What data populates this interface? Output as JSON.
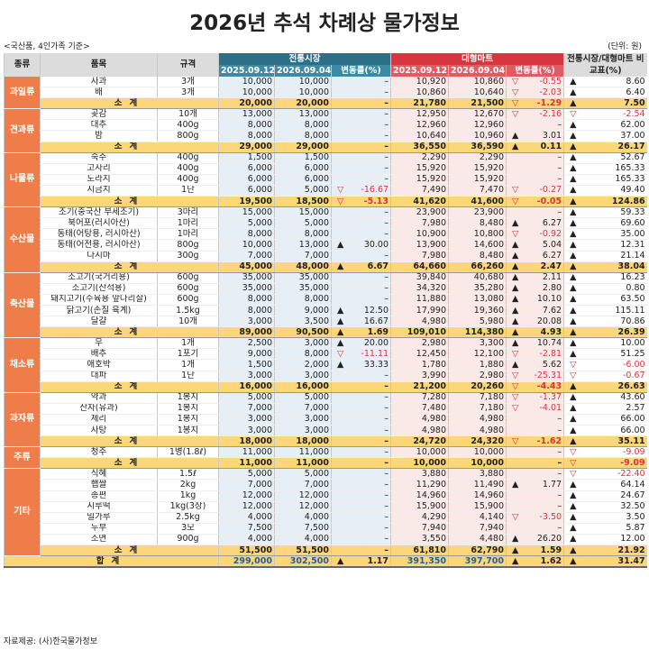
{
  "title": "2026년 추석 차례상 물가정보",
  "subnote": "<국산품, 4인가족 기준>",
  "unit": "(단위: 원)",
  "source": "자료제공: (사)한국물가정보",
  "headers": {
    "category": "종류",
    "item": "품목",
    "spec": "규격",
    "traditional": "전통시장",
    "mart": "대형마트",
    "date1": "2025.09.12.",
    "date2": "2026.09.04.",
    "change": "변동률(%)",
    "compare": "전통시장/대형마트 비교표(%)"
  },
  "subtotal_label": "소계",
  "total_label": "합계",
  "categories": [
    {
      "name": "과일류",
      "items": [
        {
          "name": "사과",
          "spec": "3개",
          "t1": "10,000",
          "t2": "10,000",
          "tm": "",
          "tc": "–",
          "m1": "10,920",
          "m2": "10,860",
          "mm": "▽",
          "mc": "-0.55",
          "cm": "▲",
          "cv": "8.60"
        },
        {
          "name": "배",
          "spec": "3개",
          "t1": "10,000",
          "t2": "10,000",
          "tm": "",
          "tc": "–",
          "m1": "10,860",
          "m2": "10,640",
          "mm": "▽",
          "mc": "-2.03",
          "cm": "▲",
          "cv": "6.40"
        }
      ],
      "sub": {
        "t1": "20,000",
        "t2": "20,000",
        "tm": "",
        "tc": "–",
        "m1": "21,780",
        "m2": "21,500",
        "mm": "▽",
        "mc": "-1.29",
        "cm": "▲",
        "cv": "7.50"
      }
    },
    {
      "name": "견과류",
      "items": [
        {
          "name": "곶감",
          "spec": "10개",
          "t1": "13,000",
          "t2": "13,000",
          "tm": "",
          "tc": "–",
          "m1": "12,950",
          "m2": "12,670",
          "mm": "▽",
          "mc": "-2.16",
          "cm": "▽",
          "cv": "-2.54"
        },
        {
          "name": "대추",
          "spec": "400g",
          "t1": "8,000",
          "t2": "8,000",
          "tm": "",
          "tc": "–",
          "m1": "12,960",
          "m2": "12,960",
          "mm": "",
          "mc": "–",
          "cm": "▲",
          "cv": "62.00"
        },
        {
          "name": "밤",
          "spec": "800g",
          "t1": "8,000",
          "t2": "8,000",
          "tm": "",
          "tc": "–",
          "m1": "10,640",
          "m2": "10,960",
          "mm": "▲",
          "mc": "3.01",
          "cm": "▲",
          "cv": "37.00"
        }
      ],
      "sub": {
        "t1": "29,000",
        "t2": "29,000",
        "tm": "",
        "tc": "–",
        "m1": "36,550",
        "m2": "36,590",
        "mm": "▲",
        "mc": "0.11",
        "cm": "▲",
        "cv": "26.17"
      }
    },
    {
      "name": "나물류",
      "items": [
        {
          "name": "숙주",
          "spec": "400g",
          "t1": "1,500",
          "t2": "1,500",
          "tm": "",
          "tc": "–",
          "m1": "2,290",
          "m2": "2,290",
          "mm": "",
          "mc": "–",
          "cm": "▲",
          "cv": "52.67"
        },
        {
          "name": "고사리",
          "spec": "400g",
          "t1": "6,000",
          "t2": "6,000",
          "tm": "",
          "tc": "–",
          "m1": "15,920",
          "m2": "15,920",
          "mm": "",
          "mc": "–",
          "cm": "▲",
          "cv": "165.33"
        },
        {
          "name": "도라지",
          "spec": "400g",
          "t1": "6,000",
          "t2": "6,000",
          "tm": "",
          "tc": "–",
          "m1": "15,920",
          "m2": "15,920",
          "mm": "",
          "mc": "–",
          "cm": "▲",
          "cv": "165.33"
        },
        {
          "name": "시금치",
          "spec": "1단",
          "t1": "6,000",
          "t2": "5,000",
          "tm": "▽",
          "tc": "-16.67",
          "m1": "7,490",
          "m2": "7,470",
          "mm": "▽",
          "mc": "-0.27",
          "cm": "▲",
          "cv": "49.40"
        }
      ],
      "sub": {
        "t1": "19,500",
        "t2": "18,500",
        "tm": "▽",
        "tc": "-5.13",
        "m1": "41,620",
        "m2": "41,600",
        "mm": "▽",
        "mc": "-0.05",
        "cm": "▲",
        "cv": "124.86"
      }
    },
    {
      "name": "수산물",
      "items": [
        {
          "name": "조기(중국산 부세조기)",
          "spec": "3마리",
          "t1": "15,000",
          "t2": "15,000",
          "tm": "",
          "tc": "–",
          "m1": "23,900",
          "m2": "23,900",
          "mm": "",
          "mc": "–",
          "cm": "▲",
          "cv": "59.33"
        },
        {
          "name": "북어포(러시아산)",
          "spec": "1마리",
          "t1": "5,000",
          "t2": "5,000",
          "tm": "",
          "tc": "–",
          "m1": "7,980",
          "m2": "8,480",
          "mm": "▲",
          "mc": "6.27",
          "cm": "▲",
          "cv": "69.60"
        },
        {
          "name": "동태(어탕용, 러시아산)",
          "spec": "1마리",
          "t1": "8,000",
          "t2": "8,000",
          "tm": "",
          "tc": "–",
          "m1": "10,900",
          "m2": "10,800",
          "mm": "▽",
          "mc": "-0.92",
          "cm": "▲",
          "cv": "35.00"
        },
        {
          "name": "동태(어전용, 러시아산)",
          "spec": "800g",
          "t1": "10,000",
          "t2": "13,000",
          "tm": "▲",
          "tc": "30.00",
          "m1": "13,900",
          "m2": "14,600",
          "mm": "▲",
          "mc": "5.04",
          "cm": "▲",
          "cv": "12.31"
        },
        {
          "name": "다시마",
          "spec": "300g",
          "t1": "7,000",
          "t2": "7,000",
          "tm": "",
          "tc": "–",
          "m1": "7,980",
          "m2": "8,480",
          "mm": "▲",
          "mc": "6.27",
          "cm": "▲",
          "cv": "21.14"
        }
      ],
      "sub": {
        "t1": "45,000",
        "t2": "48,000",
        "tm": "▲",
        "tc": "6.67",
        "m1": "64,660",
        "m2": "66,260",
        "mm": "▲",
        "mc": "2.47",
        "cm": "▲",
        "cv": "38.04"
      }
    },
    {
      "name": "축산물",
      "items": [
        {
          "name": "소고기(국거리용)",
          "spec": "600g",
          "t1": "35,000",
          "t2": "35,000",
          "tm": "",
          "tc": "–",
          "m1": "39,840",
          "m2": "40,680",
          "mm": "▲",
          "mc": "2.11",
          "cm": "▲",
          "cv": "16.23"
        },
        {
          "name": "소고기(산적용)",
          "spec": "600g",
          "t1": "35,000",
          "t2": "35,000",
          "tm": "",
          "tc": "–",
          "m1": "34,320",
          "m2": "35,280",
          "mm": "▲",
          "mc": "2.80",
          "cm": "▲",
          "cv": "0.80"
        },
        {
          "name": "돼지고기(수육용 앞다리살)",
          "spec": "600g",
          "t1": "8,000",
          "t2": "8,000",
          "tm": "",
          "tc": "–",
          "m1": "11,880",
          "m2": "13,080",
          "mm": "▲",
          "mc": "10.10",
          "cm": "▲",
          "cv": "63.50"
        },
        {
          "name": "닭고기(손질 육계)",
          "spec": "1.5kg",
          "t1": "8,000",
          "t2": "9,000",
          "tm": "▲",
          "tc": "12.50",
          "m1": "17,990",
          "m2": "19,360",
          "mm": "▲",
          "mc": "7.62",
          "cm": "▲",
          "cv": "115.11"
        },
        {
          "name": "달걀",
          "spec": "10개",
          "t1": "3,000",
          "t2": "3,500",
          "tm": "▲",
          "tc": "16.67",
          "m1": "4,980",
          "m2": "5,980",
          "mm": "▲",
          "mc": "20.08",
          "cm": "▲",
          "cv": "70.86"
        }
      ],
      "sub": {
        "t1": "89,000",
        "t2": "90,500",
        "tm": "▲",
        "tc": "1.69",
        "m1": "109,010",
        "m2": "114,380",
        "mm": "▲",
        "mc": "4.93",
        "cm": "▲",
        "cv": "26.39"
      }
    },
    {
      "name": "채소류",
      "items": [
        {
          "name": "무",
          "spec": "1개",
          "t1": "2,500",
          "t2": "3,000",
          "tm": "▲",
          "tc": "20.00",
          "m1": "2,980",
          "m2": "3,300",
          "mm": "▲",
          "mc": "10.74",
          "cm": "▲",
          "cv": "10.00"
        },
        {
          "name": "배추",
          "spec": "1포기",
          "t1": "9,000",
          "t2": "8,000",
          "tm": "▽",
          "tc": "-11.11",
          "m1": "12,450",
          "m2": "12,100",
          "mm": "▽",
          "mc": "-2.81",
          "cm": "▲",
          "cv": "51.25"
        },
        {
          "name": "애호박",
          "spec": "1개",
          "t1": "1,500",
          "t2": "2,000",
          "tm": "▲",
          "tc": "33.33",
          "m1": "1,780",
          "m2": "1,880",
          "mm": "▲",
          "mc": "5.62",
          "cm": "▽",
          "cv": "-6.00"
        },
        {
          "name": "대파",
          "spec": "1단",
          "t1": "3,000",
          "t2": "3,000",
          "tm": "",
          "tc": "–",
          "m1": "3,990",
          "m2": "2,980",
          "mm": "▽",
          "mc": "-25.31",
          "cm": "▽",
          "cv": "-0.67"
        }
      ],
      "sub": {
        "t1": "16,000",
        "t2": "16,000",
        "tm": "",
        "tc": "–",
        "m1": "21,200",
        "m2": "20,260",
        "mm": "▽",
        "mc": "-4.43",
        "cm": "▲",
        "cv": "26.63"
      }
    },
    {
      "name": "과자류",
      "items": [
        {
          "name": "약과",
          "spec": "1봉지",
          "t1": "5,000",
          "t2": "5,000",
          "tm": "",
          "tc": "–",
          "m1": "7,280",
          "m2": "7,180",
          "mm": "▽",
          "mc": "-1.37",
          "cm": "▲",
          "cv": "43.60"
        },
        {
          "name": "산자(유과)",
          "spec": "1봉지",
          "t1": "7,000",
          "t2": "7,000",
          "tm": "",
          "tc": "–",
          "m1": "7,480",
          "m2": "7,180",
          "mm": "▽",
          "mc": "-4.01",
          "cm": "▲",
          "cv": "2.57"
        },
        {
          "name": "제리",
          "spec": "1봉지",
          "t1": "3,000",
          "t2": "3,000",
          "tm": "",
          "tc": "–",
          "m1": "4,980",
          "m2": "4,980",
          "mm": "",
          "mc": "–",
          "cm": "▲",
          "cv": "66.00"
        },
        {
          "name": "사탕",
          "spec": "1봉지",
          "t1": "3,000",
          "t2": "3,000",
          "tm": "",
          "tc": "–",
          "m1": "4,980",
          "m2": "4,980",
          "mm": "",
          "mc": "–",
          "cm": "▲",
          "cv": "66.00"
        }
      ],
      "sub": {
        "t1": "18,000",
        "t2": "18,000",
        "tm": "",
        "tc": "–",
        "m1": "24,720",
        "m2": "24,320",
        "mm": "▽",
        "mc": "-1.62",
        "cm": "▲",
        "cv": "35.11"
      }
    },
    {
      "name": "주류",
      "items": [
        {
          "name": "청주",
          "spec": "1병(1.8ℓ)",
          "t1": "11,000",
          "t2": "11,000",
          "tm": "",
          "tc": "–",
          "m1": "10,000",
          "m2": "10,000",
          "mm": "",
          "mc": "–",
          "cm": "▽",
          "cv": "-9.09"
        }
      ],
      "sub": {
        "t1": "11,000",
        "t2": "11,000",
        "tm": "",
        "tc": "–",
        "m1": "10,000",
        "m2": "10,000",
        "mm": "",
        "mc": "–",
        "cm": "▽",
        "cv": "-9.09"
      }
    },
    {
      "name": "기타",
      "items": [
        {
          "name": "식혜",
          "spec": "1.5ℓ",
          "t1": "5,000",
          "t2": "5,000",
          "tm": "",
          "tc": "–",
          "m1": "3,880",
          "m2": "3,880",
          "mm": "",
          "mc": "–",
          "cm": "▽",
          "cv": "-22.40"
        },
        {
          "name": "햅쌀",
          "spec": "2kg",
          "t1": "7,000",
          "t2": "7,000",
          "tm": "",
          "tc": "–",
          "m1": "11,290",
          "m2": "11,490",
          "mm": "▲",
          "mc": "1.77",
          "cm": "▲",
          "cv": "64.14"
        },
        {
          "name": "송편",
          "spec": "1kg",
          "t1": "12,000",
          "t2": "12,000",
          "tm": "",
          "tc": "–",
          "m1": "14,960",
          "m2": "14,960",
          "mm": "",
          "mc": "–",
          "cm": "▲",
          "cv": "24.67"
        },
        {
          "name": "시루떡",
          "spec": "1kg(3장)",
          "t1": "12,000",
          "t2": "12,000",
          "tm": "",
          "tc": "–",
          "m1": "15,900",
          "m2": "15,900",
          "mm": "",
          "mc": "–",
          "cm": "▲",
          "cv": "32.50"
        },
        {
          "name": "밀가루",
          "spec": "2.5kg",
          "t1": "4,000",
          "t2": "4,000",
          "tm": "",
          "tc": "–",
          "m1": "4,290",
          "m2": "4,140",
          "mm": "▽",
          "mc": "-3.50",
          "cm": "▲",
          "cv": "3.50"
        },
        {
          "name": "두부",
          "spec": "3모",
          "t1": "7,500",
          "t2": "7,500",
          "tm": "",
          "tc": "–",
          "m1": "7,940",
          "m2": "7,940",
          "mm": "",
          "mc": "–",
          "cm": "▲",
          "cv": "5.87"
        },
        {
          "name": "소면",
          "spec": "900g",
          "t1": "4,000",
          "t2": "4,000",
          "tm": "",
          "tc": "–",
          "m1": "3,550",
          "m2": "4,480",
          "mm": "▲",
          "mc": "26.20",
          "cm": "▲",
          "cv": "12.00"
        }
      ],
      "sub": {
        "t1": "51,500",
        "t2": "51,500",
        "tm": "",
        "tc": "–",
        "m1": "61,810",
        "m2": "62,790",
        "mm": "▲",
        "mc": "1.59",
        "cm": "▲",
        "cv": "21.92"
      }
    }
  ],
  "total": {
    "t1": "299,000",
    "t2": "302,500",
    "tm": "▲",
    "tc": "1.17",
    "m1": "391,350",
    "m2": "397,700",
    "mm": "▲",
    "mc": "1.62",
    "cm": "▲",
    "cv": "31.47"
  }
}
